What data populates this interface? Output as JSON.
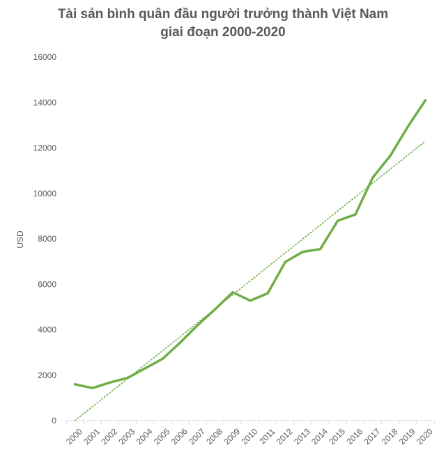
{
  "chart_data": {
    "type": "line",
    "title": [
      "Tài sản bình quân đầu người trưởng thành Việt Nam",
      "giai đoạn 2000-2020"
    ],
    "xlabel": "",
    "ylabel": "USD",
    "ylim": [
      0,
      16000
    ],
    "yticks": [
      0,
      2000,
      4000,
      6000,
      8000,
      10000,
      12000,
      14000,
      16000
    ],
    "grid": false,
    "categories": [
      "2000",
      "2001",
      "2002",
      "2003",
      "2004",
      "2005",
      "2006",
      "2007",
      "2008",
      "2009",
      "2010",
      "2011",
      "2012",
      "2013",
      "2014",
      "2015",
      "2016",
      "2017",
      "2018",
      "2019",
      "2020"
    ],
    "series": [
      {
        "values": [
          1600,
          1430,
          1680,
          1880,
          2300,
          2720,
          3430,
          4200,
          4900,
          5650,
          5280,
          5600,
          6980,
          7430,
          7550,
          8800,
          9070,
          10700,
          11660,
          12940,
          14100
        ],
        "color": "#70ad47",
        "style": "solid"
      },
      {
        "type": "trendline",
        "values": [
          0,
          615,
          1230,
          1845,
          2460,
          3075,
          3690,
          4305,
          4920,
          5535,
          6150,
          6765,
          7380,
          7995,
          8610,
          9225,
          9840,
          10455,
          11070,
          11685,
          12300
        ],
        "color": "#70ad47",
        "style": "dotted"
      }
    ]
  }
}
